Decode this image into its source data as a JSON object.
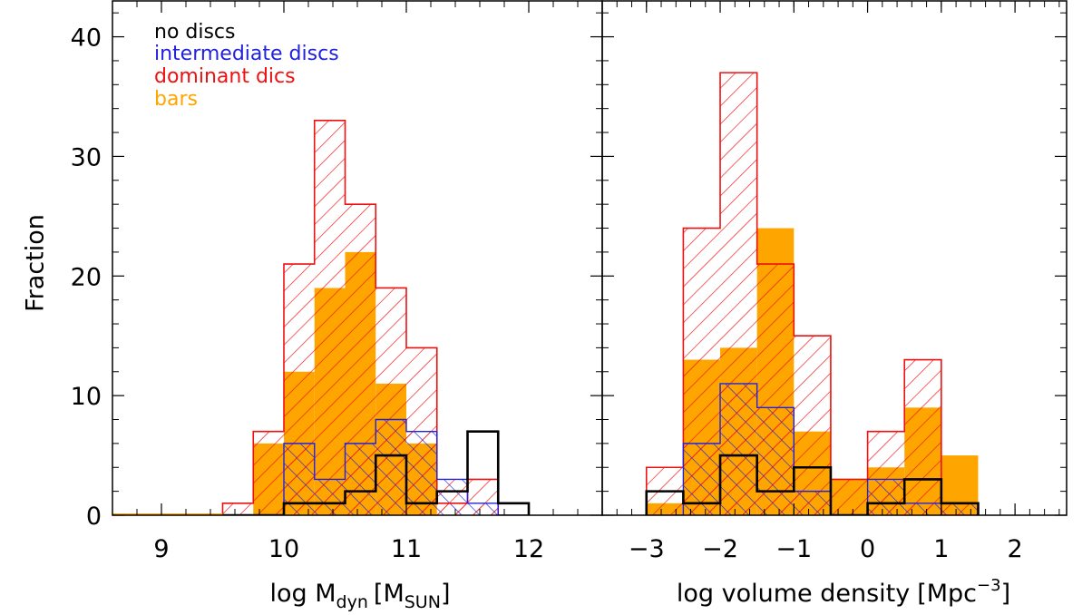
{
  "figure": {
    "ylabel": "Fraction",
    "legend": [
      {
        "label": "no discs",
        "color": "#000000"
      },
      {
        "label": "intermediate discs",
        "color": "#2222dd"
      },
      {
        "label": "dominant dics",
        "color": "#ee1111"
      },
      {
        "label": "bars",
        "color": "#ffa500"
      }
    ],
    "legend_placement": "top-left of left panel",
    "colors": {
      "no_discs": "#000000",
      "intermediate": "#2222dd",
      "dominant": "#ee1111",
      "bars": "#ffa500"
    }
  },
  "chart_data": [
    {
      "type": "bar",
      "histogram": true,
      "xlabel": {
        "main": "log M",
        "sub": "dyn",
        "bracket_main": "M",
        "bracket_sub": "SUN"
      },
      "ylabel": "Fraction",
      "xlim": [
        8.6,
        12.6
      ],
      "ylim": [
        0,
        43
      ],
      "xticks": [
        9,
        10,
        11,
        12
      ],
      "yticks": [
        0,
        10,
        20,
        30,
        40
      ],
      "bin_width": 0.25,
      "bin_starts": [
        9.5,
        9.75,
        10.0,
        10.25,
        10.5,
        10.75,
        11.0,
        11.25,
        11.5,
        11.75
      ],
      "series": [
        {
          "name": "no discs",
          "style": "step",
          "values": [
            0,
            0,
            1,
            1,
            2,
            5,
            1,
            2,
            7,
            1
          ]
        },
        {
          "name": "intermediate discs",
          "style": "crosshatch",
          "values": [
            0,
            0,
            6,
            3,
            6,
            8,
            7,
            3,
            1,
            0
          ]
        },
        {
          "name": "dominant dics",
          "style": "diagonal hatch",
          "values": [
            1,
            7,
            21,
            33,
            26,
            19,
            14,
            1,
            3,
            0
          ]
        },
        {
          "name": "bars",
          "style": "filled",
          "values": [
            0,
            6,
            12,
            19,
            22,
            11,
            6,
            0,
            0,
            0
          ]
        }
      ]
    },
    {
      "type": "bar",
      "histogram": true,
      "xlabel": {
        "main": "log volume density",
        "bracket_main": "Mpc",
        "bracket_sup": "−3"
      },
      "xlim": [
        -3.6,
        2.7
      ],
      "ylim": [
        0,
        43
      ],
      "xticks": [
        -3,
        -2,
        -1,
        0,
        1,
        2
      ],
      "tick_labels": [
        "−3",
        "−2",
        "−1",
        "0",
        "1",
        "2"
      ],
      "bin_width": 0.5,
      "bin_starts": [
        -3.0,
        -2.5,
        -2.0,
        -1.5,
        -1.0,
        -0.5,
        0.0,
        0.5,
        1.0
      ],
      "series": [
        {
          "name": "no discs",
          "style": "step",
          "values": [
            2,
            1,
            5,
            2,
            4,
            0,
            1,
            3,
            1
          ]
        },
        {
          "name": "intermediate discs",
          "style": "crosshatch",
          "values": [
            0,
            6,
            11,
            9,
            2,
            0,
            3,
            1,
            1
          ]
        },
        {
          "name": "dominant dics",
          "style": "diagonal hatch",
          "values": [
            4,
            24,
            37,
            21,
            15,
            3,
            7,
            13,
            0
          ]
        },
        {
          "name": "bars",
          "style": "filled",
          "values": [
            1,
            13,
            14,
            24,
            7,
            3,
            4,
            9,
            5
          ]
        }
      ]
    }
  ]
}
